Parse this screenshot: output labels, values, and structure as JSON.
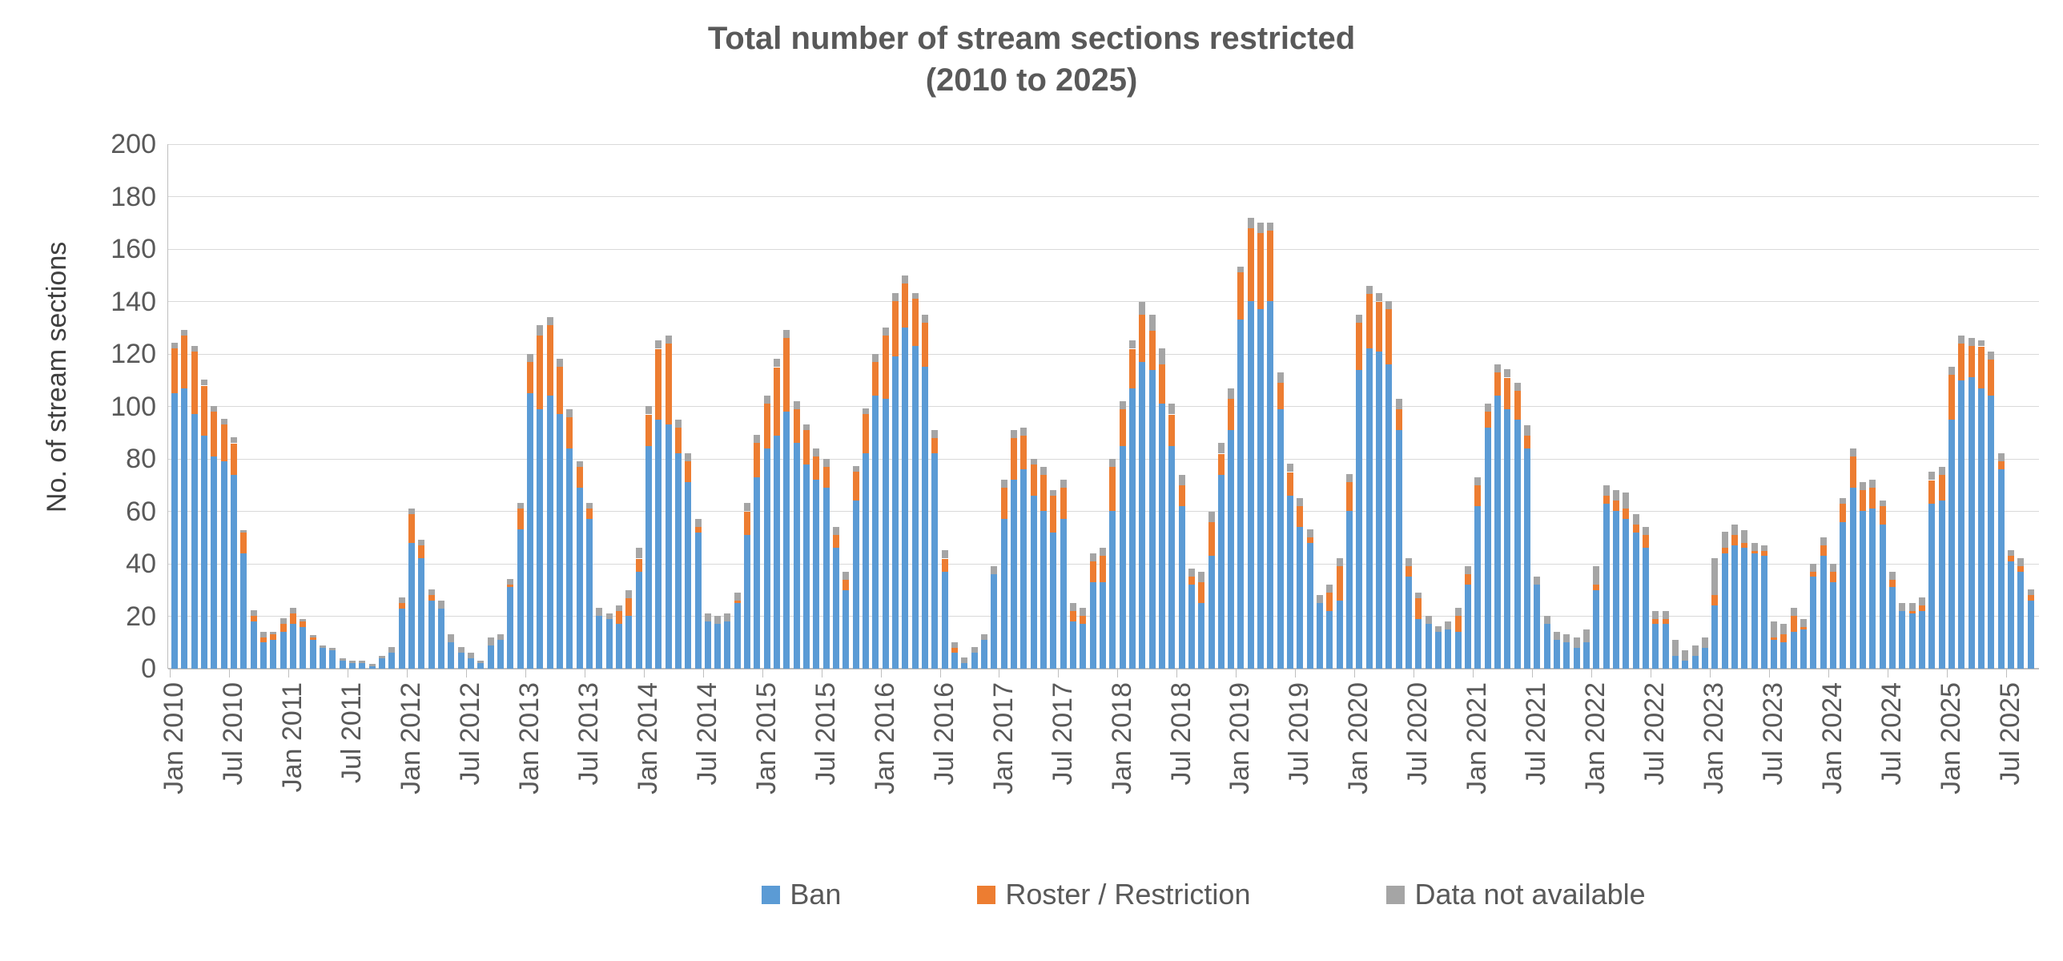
{
  "chart_data": {
    "type": "bar",
    "stacked": true,
    "title_line1": "Total number of stream sections restricted",
    "title_line2": "(2010 to 2025)",
    "ylabel": "No. of stream sections",
    "ylim": [
      0,
      200
    ],
    "yticks": [
      0,
      20,
      40,
      60,
      80,
      100,
      120,
      140,
      160,
      180,
      200
    ],
    "grid": true,
    "legend_position": "bottom",
    "x_tick_interval": 6,
    "categories": [
      "Jan 2010",
      "Feb 2010",
      "Mar 2010",
      "Apr 2010",
      "May 2010",
      "Jun 2010",
      "Jul 2010",
      "Aug 2010",
      "Sep 2010",
      "Oct 2010",
      "Nov 2010",
      "Dec 2010",
      "Jan 2011",
      "Feb 2011",
      "Mar 2011",
      "Apr 2011",
      "May 2011",
      "Jun 2011",
      "Jul 2011",
      "Aug 2011",
      "Sep 2011",
      "Oct 2011",
      "Nov 2011",
      "Dec 2011",
      "Jan 2012",
      "Feb 2012",
      "Mar 2012",
      "Apr 2012",
      "May 2012",
      "Jun 2012",
      "Jul 2012",
      "Aug 2012",
      "Sep 2012",
      "Oct 2012",
      "Nov 2012",
      "Dec 2012",
      "Jan 2013",
      "Feb 2013",
      "Mar 2013",
      "Apr 2013",
      "May 2013",
      "Jun 2013",
      "Jul 2013",
      "Aug 2013",
      "Sep 2013",
      "Oct 2013",
      "Nov 2013",
      "Dec 2013",
      "Jan 2014",
      "Feb 2014",
      "Mar 2014",
      "Apr 2014",
      "May 2014",
      "Jun 2014",
      "Jul 2014",
      "Aug 2014",
      "Sep 2014",
      "Oct 2014",
      "Nov 2014",
      "Dec 2014",
      "Jan 2015",
      "Feb 2015",
      "Mar 2015",
      "Apr 2015",
      "May 2015",
      "Jun 2015",
      "Jul 2015",
      "Aug 2015",
      "Sep 2015",
      "Oct 2015",
      "Nov 2015",
      "Dec 2015",
      "Jan 2016",
      "Feb 2016",
      "Mar 2016",
      "Apr 2016",
      "May 2016",
      "Jun 2016",
      "Jul 2016",
      "Aug 2016",
      "Sep 2016",
      "Oct 2016",
      "Nov 2016",
      "Dec 2016",
      "Jan 2017",
      "Feb 2017",
      "Mar 2017",
      "Apr 2017",
      "May 2017",
      "Jun 2017",
      "Jul 2017",
      "Aug 2017",
      "Sep 2017",
      "Oct 2017",
      "Nov 2017",
      "Dec 2017",
      "Jan 2018",
      "Feb 2018",
      "Mar 2018",
      "Apr 2018",
      "May 2018",
      "Jun 2018",
      "Jul 2018",
      "Aug 2018",
      "Sep 2018",
      "Oct 2018",
      "Nov 2018",
      "Dec 2018",
      "Jan 2019",
      "Feb 2019",
      "Mar 2019",
      "Apr 2019",
      "May 2019",
      "Jun 2019",
      "Jul 2019",
      "Aug 2019",
      "Sep 2019",
      "Oct 2019",
      "Nov 2019",
      "Dec 2019",
      "Jan 2020",
      "Feb 2020",
      "Mar 2020",
      "Apr 2020",
      "May 2020",
      "Jun 2020",
      "Jul 2020",
      "Aug 2020",
      "Sep 2020",
      "Oct 2020",
      "Nov 2020",
      "Dec 2020",
      "Jan 2021",
      "Feb 2021",
      "Mar 2021",
      "Apr 2021",
      "May 2021",
      "Jun 2021",
      "Jul 2021",
      "Aug 2021",
      "Sep 2021",
      "Oct 2021",
      "Nov 2021",
      "Dec 2021",
      "Jan 2022",
      "Feb 2022",
      "Mar 2022",
      "Apr 2022",
      "May 2022",
      "Jun 2022",
      "Jul 2022",
      "Aug 2022",
      "Sep 2022",
      "Oct 2022",
      "Nov 2022",
      "Dec 2022",
      "Jan 2023",
      "Feb 2023",
      "Mar 2023",
      "Apr 2023",
      "May 2023",
      "Jun 2023",
      "Jul 2023",
      "Aug 2023",
      "Sep 2023",
      "Oct 2023",
      "Nov 2023",
      "Dec 2023",
      "Jan 2024",
      "Feb 2024",
      "Mar 2024",
      "Apr 2024",
      "May 2024",
      "Jun 2024",
      "Jul 2024",
      "Aug 2024",
      "Sep 2024",
      "Oct 2024",
      "Nov 2024",
      "Dec 2024",
      "Jan 2025",
      "Feb 2025",
      "Mar 2025",
      "Apr 2025",
      "May 2025",
      "Jun 2025",
      "Jul 2025",
      "Aug 2025",
      "Sep 2025"
    ],
    "series": [
      {
        "name": "Ban",
        "color": "#5B9BD5",
        "values": [
          105,
          107,
          97,
          89,
          81,
          79,
          74,
          44,
          18,
          10,
          11,
          14,
          17,
          16,
          11,
          8,
          7,
          3,
          2,
          2,
          1,
          4,
          6,
          23,
          48,
          42,
          26,
          23,
          10,
          6,
          4,
          2,
          9,
          11,
          31,
          53,
          105,
          99,
          104,
          97,
          84,
          69,
          57,
          20,
          19,
          17,
          20,
          37,
          85,
          95,
          93,
          82,
          71,
          52,
          18,
          17,
          18,
          25,
          51,
          73,
          84,
          89,
          98,
          86,
          78,
          72,
          69,
          46,
          30,
          64,
          82,
          104,
          103,
          119,
          130,
          123,
          115,
          82,
          37,
          6,
          2,
          6,
          11,
          36,
          57,
          72,
          76,
          66,
          60,
          52,
          57,
          18,
          17,
          33,
          33,
          60,
          85,
          107,
          117,
          114,
          101,
          85,
          62,
          32,
          25,
          43,
          74,
          91,
          133,
          140,
          137,
          140,
          99,
          66,
          54,
          48,
          25,
          22,
          26,
          60,
          114,
          122,
          121,
          116,
          91,
          35,
          19,
          17,
          14,
          15,
          14,
          32,
          62,
          92,
          104,
          99,
          95,
          84,
          32,
          17,
          11,
          10,
          8,
          10,
          30,
          63,
          60,
          57,
          52,
          46,
          17,
          17,
          5,
          3,
          5,
          8,
          24,
          44,
          47,
          46,
          44,
          43,
          11,
          10,
          14,
          15,
          35,
          43,
          33,
          56,
          69,
          60,
          61,
          55,
          31,
          22,
          21,
          22,
          63,
          64,
          95,
          110,
          111,
          107,
          104,
          76,
          41,
          37,
          26
        ]
      },
      {
        "name": "Roster / Restriction",
        "color": "#ED7D31",
        "values": [
          17,
          20,
          24,
          19,
          17,
          14,
          12,
          8,
          2,
          2,
          2,
          3,
          4,
          2,
          1,
          0,
          0,
          0,
          0,
          0,
          0,
          0,
          0,
          2,
          11,
          5,
          2,
          0,
          0,
          0,
          0,
          0,
          0,
          0,
          1,
          8,
          12,
          28,
          27,
          18,
          12,
          8,
          4,
          0,
          0,
          5,
          7,
          5,
          12,
          27,
          31,
          10,
          8,
          2,
          0,
          0,
          0,
          1,
          9,
          13,
          17,
          26,
          28,
          13,
          13,
          9,
          8,
          5,
          4,
          11,
          15,
          13,
          24,
          21,
          17,
          18,
          17,
          6,
          5,
          2,
          0,
          0,
          0,
          0,
          12,
          16,
          13,
          12,
          14,
          14,
          12,
          4,
          3,
          8,
          10,
          17,
          14,
          15,
          18,
          15,
          15,
          12,
          8,
          3,
          8,
          13,
          8,
          12,
          18,
          28,
          29,
          27,
          10,
          9,
          8,
          2,
          0,
          7,
          13,
          11,
          18,
          21,
          19,
          21,
          8,
          4,
          8,
          0,
          0,
          0,
          6,
          4,
          8,
          6,
          9,
          12,
          11,
          5,
          0,
          0,
          0,
          0,
          0,
          0,
          2,
          3,
          4,
          4,
          3,
          5,
          2,
          2,
          0,
          0,
          0,
          0,
          4,
          2,
          4,
          2,
          1,
          2,
          1,
          3,
          6,
          1,
          2,
          4,
          4,
          7,
          12,
          8,
          8,
          7,
          3,
          0,
          1,
          2,
          9,
          10,
          17,
          14,
          12,
          16,
          14,
          3,
          2,
          2,
          2
        ]
      },
      {
        "name": "Data not available",
        "color": "#A5A5A5",
        "values": [
          2,
          2,
          2,
          2,
          2,
          2,
          2,
          1,
          2,
          2,
          1,
          2,
          2,
          1,
          1,
          1,
          1,
          1,
          1,
          1,
          1,
          1,
          2,
          2,
          2,
          2,
          2,
          3,
          3,
          2,
          2,
          1,
          3,
          2,
          2,
          2,
          3,
          4,
          3,
          3,
          3,
          2,
          2,
          3,
          2,
          2,
          3,
          4,
          3,
          3,
          3,
          3,
          3,
          3,
          3,
          3,
          3,
          3,
          3,
          3,
          3,
          3,
          3,
          3,
          2,
          3,
          3,
          3,
          3,
          2,
          2,
          3,
          3,
          3,
          3,
          2,
          3,
          3,
          3,
          2,
          2,
          2,
          2,
          3,
          3,
          3,
          3,
          2,
          3,
          2,
          3,
          3,
          3,
          3,
          3,
          3,
          3,
          3,
          5,
          6,
          6,
          4,
          4,
          3,
          4,
          4,
          4,
          4,
          2,
          4,
          4,
          3,
          4,
          3,
          3,
          3,
          3,
          3,
          3,
          3,
          3,
          3,
          3,
          3,
          4,
          3,
          2,
          3,
          2,
          3,
          3,
          3,
          3,
          3,
          3,
          3,
          3,
          4,
          3,
          3,
          3,
          3,
          4,
          5,
          7,
          4,
          4,
          6,
          4,
          3,
          3,
          3,
          6,
          4,
          4,
          4,
          14,
          6,
          4,
          5,
          3,
          2,
          6,
          4,
          3,
          3,
          3,
          3,
          3,
          2,
          3,
          3,
          3,
          2,
          3,
          3,
          3,
          3,
          3,
          3,
          3,
          3,
          3,
          2,
          3,
          3,
          2,
          3,
          2
        ]
      }
    ],
    "colors": {
      "ban": "#5B9BD5",
      "roster_restriction": "#ED7D31",
      "data_not_available": "#A5A5A5",
      "gridline": "#D9D9D9",
      "axis_line": "#BFBFBF",
      "text": "#595959"
    }
  }
}
